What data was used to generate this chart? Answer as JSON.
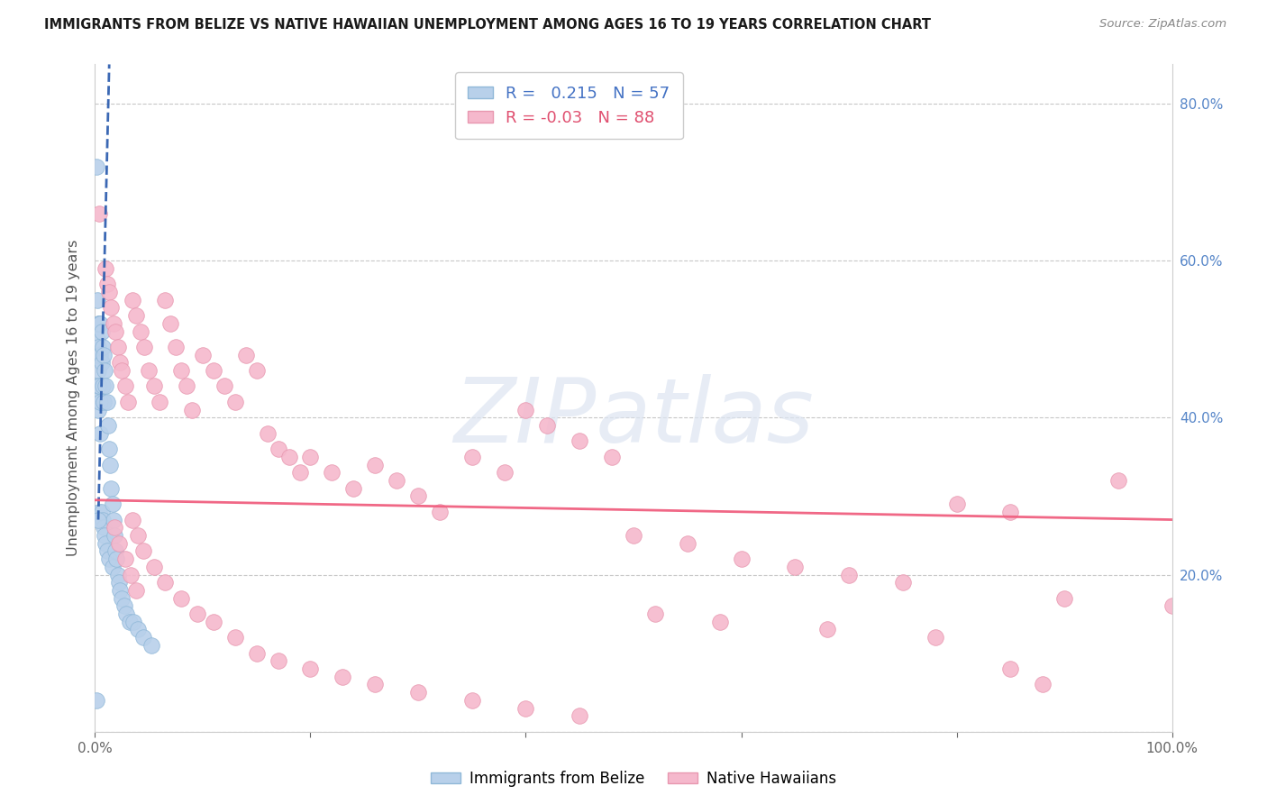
{
  "title": "IMMIGRANTS FROM BELIZE VS NATIVE HAWAIIAN UNEMPLOYMENT AMONG AGES 16 TO 19 YEARS CORRELATION CHART",
  "source": "Source: ZipAtlas.com",
  "ylabel": "Unemployment Among Ages 16 to 19 years",
  "xlim": [
    0.0,
    1.0
  ],
  "ylim": [
    0.0,
    0.85
  ],
  "belize_R": 0.215,
  "belize_N": 57,
  "hawaii_R": -0.03,
  "hawaii_N": 88,
  "belize_dot_color": "#b8d0ea",
  "belize_edge_color": "#90b8d8",
  "hawaii_dot_color": "#f5b8cc",
  "hawaii_edge_color": "#e898b0",
  "belize_line_color": "#3060b0",
  "hawaii_line_color": "#f06080",
  "right_tick_color": "#5585c8",
  "legend_text1_color": "#4472c4",
  "legend_text2_color": "#e05070",
  "watermark_color": "#dde5f2",
  "background_color": "#ffffff",
  "grid_color": "#c8c8c8",
  "belize_x": [
    0.001,
    0.001,
    0.002,
    0.002,
    0.002,
    0.002,
    0.003,
    0.003,
    0.003,
    0.003,
    0.003,
    0.004,
    0.004,
    0.004,
    0.004,
    0.005,
    0.005,
    0.005,
    0.005,
    0.006,
    0.006,
    0.006,
    0.007,
    0.007,
    0.007,
    0.008,
    0.008,
    0.008,
    0.009,
    0.009,
    0.01,
    0.01,
    0.011,
    0.011,
    0.012,
    0.013,
    0.013,
    0.014,
    0.015,
    0.016,
    0.016,
    0.017,
    0.018,
    0.019,
    0.02,
    0.021,
    0.022,
    0.023,
    0.025,
    0.027,
    0.029,
    0.032,
    0.036,
    0.04,
    0.045,
    0.052,
    0.003
  ],
  "belize_y": [
    0.72,
    0.04,
    0.55,
    0.5,
    0.48,
    0.43,
    0.52,
    0.49,
    0.46,
    0.44,
    0.41,
    0.52,
    0.48,
    0.44,
    0.28,
    0.52,
    0.48,
    0.42,
    0.38,
    0.51,
    0.47,
    0.28,
    0.49,
    0.44,
    0.27,
    0.48,
    0.42,
    0.26,
    0.46,
    0.25,
    0.44,
    0.24,
    0.42,
    0.23,
    0.39,
    0.36,
    0.22,
    0.34,
    0.31,
    0.29,
    0.21,
    0.27,
    0.25,
    0.23,
    0.22,
    0.2,
    0.19,
    0.18,
    0.17,
    0.16,
    0.15,
    0.14,
    0.14,
    0.13,
    0.12,
    0.11,
    0.27
  ],
  "hawaii_x": [
    0.004,
    0.01,
    0.011,
    0.013,
    0.015,
    0.017,
    0.019,
    0.021,
    0.023,
    0.025,
    0.028,
    0.031,
    0.035,
    0.038,
    0.042,
    0.046,
    0.05,
    0.055,
    0.06,
    0.065,
    0.07,
    0.075,
    0.08,
    0.085,
    0.09,
    0.1,
    0.11,
    0.12,
    0.13,
    0.14,
    0.15,
    0.16,
    0.17,
    0.18,
    0.19,
    0.2,
    0.22,
    0.24,
    0.26,
    0.28,
    0.3,
    0.32,
    0.35,
    0.38,
    0.4,
    0.42,
    0.45,
    0.48,
    0.5,
    0.55,
    0.6,
    0.65,
    0.7,
    0.75,
    0.8,
    0.85,
    0.9,
    0.95,
    1.0,
    0.035,
    0.04,
    0.045,
    0.055,
    0.065,
    0.08,
    0.095,
    0.11,
    0.13,
    0.15,
    0.17,
    0.2,
    0.23,
    0.26,
    0.3,
    0.35,
    0.4,
    0.45,
    0.52,
    0.58,
    0.68,
    0.78,
    0.88,
    0.85,
    0.018,
    0.022,
    0.028,
    0.033,
    0.038
  ],
  "hawaii_y": [
    0.66,
    0.59,
    0.57,
    0.56,
    0.54,
    0.52,
    0.51,
    0.49,
    0.47,
    0.46,
    0.44,
    0.42,
    0.55,
    0.53,
    0.51,
    0.49,
    0.46,
    0.44,
    0.42,
    0.55,
    0.52,
    0.49,
    0.46,
    0.44,
    0.41,
    0.48,
    0.46,
    0.44,
    0.42,
    0.48,
    0.46,
    0.38,
    0.36,
    0.35,
    0.33,
    0.35,
    0.33,
    0.31,
    0.34,
    0.32,
    0.3,
    0.28,
    0.35,
    0.33,
    0.41,
    0.39,
    0.37,
    0.35,
    0.25,
    0.24,
    0.22,
    0.21,
    0.2,
    0.19,
    0.29,
    0.28,
    0.17,
    0.32,
    0.16,
    0.27,
    0.25,
    0.23,
    0.21,
    0.19,
    0.17,
    0.15,
    0.14,
    0.12,
    0.1,
    0.09,
    0.08,
    0.07,
    0.06,
    0.05,
    0.04,
    0.03,
    0.02,
    0.15,
    0.14,
    0.13,
    0.12,
    0.06,
    0.08,
    0.26,
    0.24,
    0.22,
    0.2,
    0.18
  ],
  "watermark": "ZIPatlas"
}
